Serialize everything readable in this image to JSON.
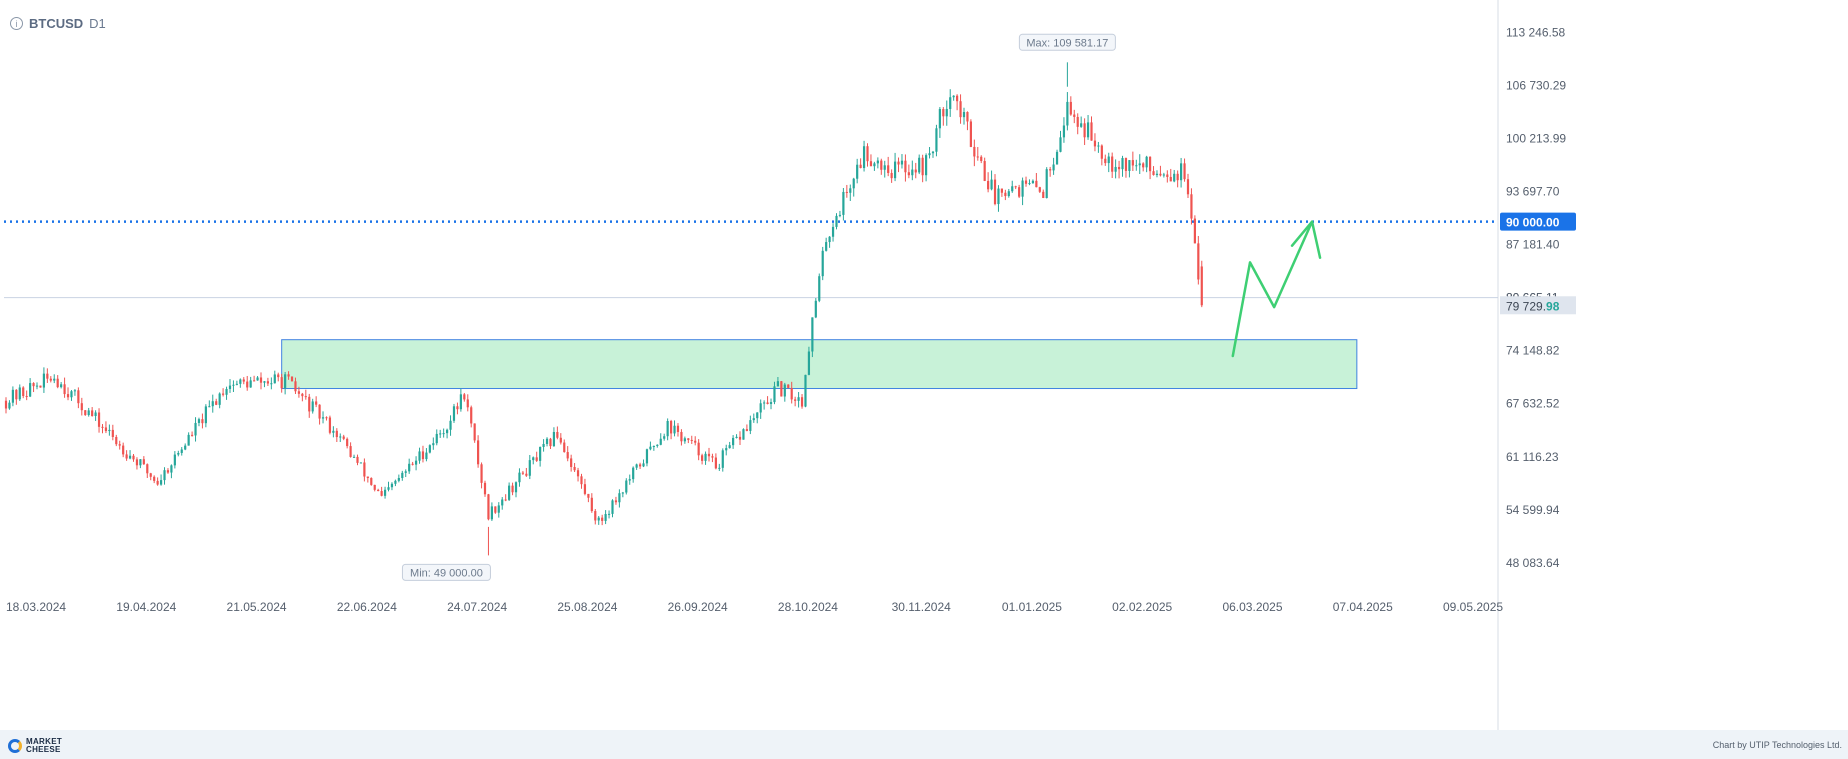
{
  "header": {
    "symbol": "BTCUSD",
    "timeframe": "D1",
    "info_icon": "info-icon"
  },
  "footer": {
    "logo_line1": "MARKET",
    "logo_line2": "CHEESE",
    "credit": "Chart by UTIP Technologies Ltd."
  },
  "chart_data": {
    "type": "candlestick",
    "symbol": "BTCUSD",
    "timeframe": "D1",
    "x_tick_labels": [
      "18.03.2024",
      "19.04.2024",
      "21.05.2024",
      "22.06.2024",
      "24.07.2024",
      "25.08.2024",
      "26.09.2024",
      "28.10.2024",
      "30.11.2024",
      "01.01.2025",
      "02.02.2025",
      "06.03.2025",
      "07.04.2025",
      "09.05.2025"
    ],
    "y_tick_labels": [
      "113 246.58",
      "106 730.29",
      "100 213.99",
      "93 697.70",
      "87 181.40",
      "80 665.11",
      "74 148.82",
      "67 632.52",
      "61 116.23",
      "54 599.94",
      "48 083.64"
    ],
    "ylim": [
      44500,
      116500
    ],
    "grid": false,
    "price_series": [
      {
        "date": "2024-03-18",
        "close": 68000
      },
      {
        "date": "2024-04-01",
        "close": 71000
      },
      {
        "date": "2024-04-19",
        "close": 63000
      },
      {
        "date": "2024-05-01",
        "close": 58000
      },
      {
        "date": "2024-05-21",
        "close": 70000
      },
      {
        "date": "2024-06-07",
        "close": 70500
      },
      {
        "date": "2024-06-22",
        "close": 64000
      },
      {
        "date": "2024-07-05",
        "close": 56000
      },
      {
        "date": "2024-07-24",
        "close": 65000
      },
      {
        "date": "2024-07-29",
        "close": 69000
      },
      {
        "date": "2024-08-05",
        "close": 54000
      },
      {
        "date": "2024-08-25",
        "close": 64000
      },
      {
        "date": "2024-09-06",
        "close": 53000
      },
      {
        "date": "2024-09-26",
        "close": 65000
      },
      {
        "date": "2024-10-10",
        "close": 60000
      },
      {
        "date": "2024-10-28",
        "close": 69500
      },
      {
        "date": "2024-11-04",
        "close": 68000
      },
      {
        "date": "2024-11-06",
        "close": 75000
      },
      {
        "date": "2024-11-11",
        "close": 88000
      },
      {
        "date": "2024-11-22",
        "close": 98500
      },
      {
        "date": "2024-11-30",
        "close": 96500
      },
      {
        "date": "2024-12-10",
        "close": 97000
      },
      {
        "date": "2024-12-17",
        "close": 106500
      },
      {
        "date": "2024-12-30",
        "close": 93000
      },
      {
        "date": "2025-01-01",
        "close": 94500
      },
      {
        "date": "2025-01-13",
        "close": 94000
      },
      {
        "date": "2025-01-20",
        "close": 104000
      },
      {
        "date": "2025-02-02",
        "close": 97500
      },
      {
        "date": "2025-02-14",
        "close": 96500
      },
      {
        "date": "2025-02-23",
        "close": 96000
      },
      {
        "date": "2025-02-28",
        "close": 79730
      }
    ],
    "max_label": "Max: 109 581.17",
    "min_label": "Min: 49 000.00",
    "max_point": {
      "date": "2025-01-20",
      "value": 109581.17
    },
    "min_point": {
      "date": "2024-08-05",
      "value": 49000.0
    },
    "levels": [
      {
        "label": "90 000.00",
        "value": 90000,
        "style": "dotted",
        "color": "#1a73e8"
      },
      {
        "label": "80 665.11",
        "value": 80665.11
      }
    ],
    "current_price": {
      "main": "79 729.",
      "tail": "98",
      "value": 79729.98
    },
    "zone": {
      "from_date": "2024-06-06",
      "to_date": "2025-04-14",
      "low": 69500,
      "high": 75500
    },
    "forecast_arrow": [
      {
        "date": "2025-03-09",
        "value": 73500
      },
      {
        "date": "2025-03-14",
        "value": 85000
      },
      {
        "date": "2025-03-21",
        "value": 79500
      },
      {
        "date": "2025-04-01",
        "value": 90000
      }
    ],
    "colors": {
      "up": "#26a69a",
      "down": "#ef5350",
      "zone_fill": "#c8f2d8",
      "zone_border": "#3f82e0",
      "arrow": "#3ecf73",
      "level": "#1a73e8"
    }
  }
}
